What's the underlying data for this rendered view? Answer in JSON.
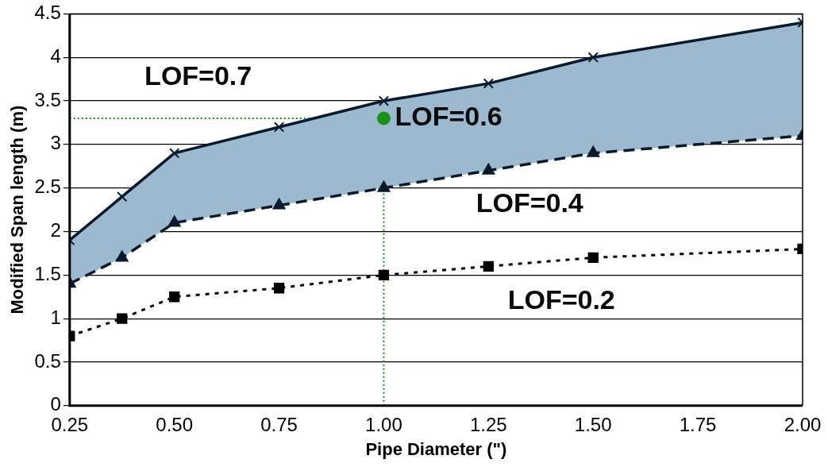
{
  "chart_data": {
    "type": "line",
    "xlabel": "Pipe Diameter (\")",
    "ylabel": "Modified Span length (m)",
    "x": [
      0.25,
      0.375,
      0.5,
      0.75,
      1.0,
      1.25,
      1.5,
      2.0
    ],
    "series": [
      {
        "name": "LOF=0.7",
        "color": "#0a1a2e",
        "marker": "cross",
        "line_style": "solid",
        "values": [
          1.9,
          2.4,
          2.9,
          3.2,
          3.5,
          3.7,
          4.0,
          4.4
        ],
        "lower": [
          1.4,
          1.7,
          2.1,
          2.3,
          2.5,
          2.7,
          2.9,
          3.1
        ],
        "upper": [
          1.9,
          2.4,
          2.9,
          3.2,
          3.5,
          3.7,
          4.0,
          4.4
        ]
      },
      {
        "name": "LOF=0.4",
        "color": "#0a1a2e",
        "marker": "triangle",
        "line_style": "dashed",
        "values": [
          1.4,
          1.7,
          2.1,
          2.3,
          2.5,
          2.7,
          2.9,
          3.1
        ]
      },
      {
        "name": "LOF=0.2",
        "color": "#000000",
        "marker": "square",
        "line_style": "dotted",
        "values": [
          0.8,
          1.0,
          1.25,
          1.35,
          1.5,
          1.6,
          1.7,
          1.8
        ]
      },
      {
        "name": "LOF=0.6",
        "type": "scatter",
        "color": "#1a8f1a",
        "marker": "circle",
        "x": [
          1.0
        ],
        "values": [
          3.3
        ]
      }
    ],
    "xlim": [
      0.25,
      2.0
    ],
    "xticks": [
      {
        "value": 0.25,
        "label": "0.25"
      },
      {
        "value": 0.5,
        "label": "0.50"
      },
      {
        "value": 0.75,
        "label": "0.75"
      },
      {
        "value": 1.0,
        "label": "1.00"
      },
      {
        "value": 1.25,
        "label": "1.25"
      },
      {
        "value": 1.5,
        "label": "1.50"
      },
      {
        "value": 1.75,
        "label": "1.75"
      },
      {
        "value": 2.0,
        "label": "2.00"
      }
    ],
    "ylim": [
      0,
      4.5
    ],
    "yticks": [
      0,
      0.5,
      1,
      1.5,
      2,
      2.5,
      3,
      3.5,
      4,
      4.5
    ],
    "ref_lines": [
      {
        "axis": "x",
        "value": 1.0,
        "color": "#1a8f1a",
        "line_style": "dotted"
      },
      {
        "axis": "y",
        "value": 3.3,
        "color": "#1a8f1a",
        "line_style": "dotted"
      }
    ],
    "grid": "y",
    "legend": false
  }
}
